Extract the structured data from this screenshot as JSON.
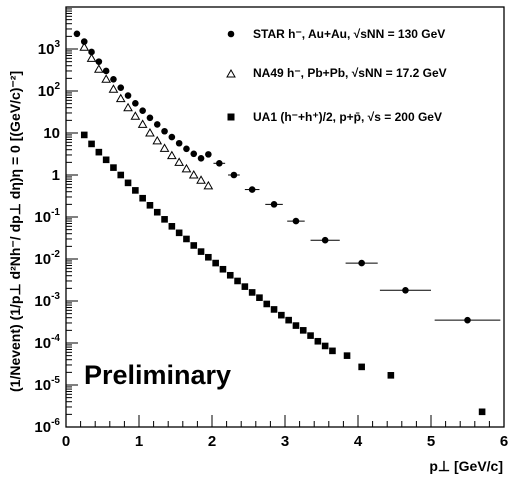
{
  "chart_data": {
    "type": "scatter",
    "x_scale": "linear",
    "y_scale": "log",
    "xlim": [
      0,
      6
    ],
    "ylim": [
      1e-06,
      10000
    ],
    "x_ticks": [
      "0",
      "1",
      "2",
      "3",
      "4",
      "5",
      "6"
    ],
    "y_ticks": [
      {
        "base": "10",
        "exp": "-6",
        "value": 1e-06
      },
      {
        "base": "10",
        "exp": "-5",
        "value": 1e-05
      },
      {
        "base": "10",
        "exp": "-4",
        "value": 0.0001
      },
      {
        "base": "10",
        "exp": "-3",
        "value": 0.001
      },
      {
        "base": "10",
        "exp": "-2",
        "value": 0.01
      },
      {
        "base": "10",
        "exp": "-1",
        "value": 0.1
      },
      {
        "base": "1",
        "exp": "",
        "value": 1
      },
      {
        "base": "10",
        "exp": "",
        "value": 10
      },
      {
        "base": "10",
        "exp": "2",
        "value": 100
      },
      {
        "base": "10",
        "exp": "3",
        "value": 1000
      }
    ],
    "xlabel": "p⊥ [GeV/c]",
    "ylabel": "(1/Nevent) (1/p⊥ d²Nh⁻/ dp⊥ dη)η = 0  [(GeV/c)⁻²]",
    "annotation": "Preliminary",
    "legend_placement": "top-right",
    "series": [
      {
        "name": "STAR h⁻, Au+Au, √sNN = 130 GeV",
        "marker": "circle-filled",
        "points": [
          {
            "x": 0.15,
            "y": 2300
          },
          {
            "x": 0.25,
            "y": 1500
          },
          {
            "x": 0.35,
            "y": 850
          },
          {
            "x": 0.45,
            "y": 500
          },
          {
            "x": 0.55,
            "y": 300
          },
          {
            "x": 0.65,
            "y": 190
          },
          {
            "x": 0.75,
            "y": 120
          },
          {
            "x": 0.85,
            "y": 78
          },
          {
            "x": 0.95,
            "y": 51
          },
          {
            "x": 1.05,
            "y": 34
          },
          {
            "x": 1.15,
            "y": 23
          },
          {
            "x": 1.25,
            "y": 16
          },
          {
            "x": 1.35,
            "y": 11
          },
          {
            "x": 1.45,
            "y": 8
          },
          {
            "x": 1.55,
            "y": 5.7
          },
          {
            "x": 1.65,
            "y": 4.2
          },
          {
            "x": 1.75,
            "y": 3.2
          },
          {
            "x": 1.85,
            "y": 2.5
          },
          {
            "x": 1.95,
            "y": 3.1
          },
          {
            "x": 2.1,
            "y": 1.9,
            "xerr": 0.08
          },
          {
            "x": 2.3,
            "y": 1.0,
            "xerr": 0.08
          },
          {
            "x": 2.55,
            "y": 0.45,
            "xerr": 0.1
          },
          {
            "x": 2.85,
            "y": 0.2,
            "xerr": 0.12
          },
          {
            "x": 3.15,
            "y": 0.08,
            "xerr": 0.12
          },
          {
            "x": 3.55,
            "y": 0.028,
            "xerr": 0.2
          },
          {
            "x": 4.05,
            "y": 0.008,
            "xerr": 0.22
          },
          {
            "x": 4.65,
            "y": 0.0018,
            "xerr": 0.35
          },
          {
            "x": 5.5,
            "y": 0.00035,
            "xerr": 0.45
          }
        ]
      },
      {
        "name": "NA49 h⁻, Pb+Pb, √sNN = 17.2 GeV",
        "marker": "triangle-open",
        "points": [
          {
            "x": 0.25,
            "y": 1100
          },
          {
            "x": 0.35,
            "y": 600
          },
          {
            "x": 0.45,
            "y": 330
          },
          {
            "x": 0.55,
            "y": 190
          },
          {
            "x": 0.65,
            "y": 110
          },
          {
            "x": 0.75,
            "y": 66
          },
          {
            "x": 0.85,
            "y": 40
          },
          {
            "x": 0.95,
            "y": 25
          },
          {
            "x": 1.05,
            "y": 16
          },
          {
            "x": 1.15,
            "y": 10
          },
          {
            "x": 1.25,
            "y": 6.5
          },
          {
            "x": 1.35,
            "y": 4.3
          },
          {
            "x": 1.45,
            "y": 2.9
          },
          {
            "x": 1.55,
            "y": 2.0
          },
          {
            "x": 1.65,
            "y": 1.4
          },
          {
            "x": 1.75,
            "y": 1.0
          },
          {
            "x": 1.85,
            "y": 0.75
          },
          {
            "x": 1.95,
            "y": 0.55
          }
        ]
      },
      {
        "name": "UA1 (h⁻+h⁺)/2, p+p̄, √s = 200 GeV",
        "marker": "square-filled",
        "points": [
          {
            "x": 0.25,
            "y": 9
          },
          {
            "x": 0.35,
            "y": 5.5
          },
          {
            "x": 0.45,
            "y": 3.5
          },
          {
            "x": 0.55,
            "y": 2.3
          },
          {
            "x": 0.65,
            "y": 1.5
          },
          {
            "x": 0.75,
            "y": 1.0
          },
          {
            "x": 0.85,
            "y": 0.65
          },
          {
            "x": 0.95,
            "y": 0.43
          },
          {
            "x": 1.05,
            "y": 0.28
          },
          {
            "x": 1.15,
            "y": 0.19
          },
          {
            "x": 1.25,
            "y": 0.13
          },
          {
            "x": 1.35,
            "y": 0.088
          },
          {
            "x": 1.45,
            "y": 0.06
          },
          {
            "x": 1.55,
            "y": 0.042
          },
          {
            "x": 1.65,
            "y": 0.03
          },
          {
            "x": 1.75,
            "y": 0.021
          },
          {
            "x": 1.85,
            "y": 0.015
          },
          {
            "x": 1.95,
            "y": 0.011
          },
          {
            "x": 2.05,
            "y": 0.008
          },
          {
            "x": 2.15,
            "y": 0.0057
          },
          {
            "x": 2.25,
            "y": 0.0041
          },
          {
            "x": 2.35,
            "y": 0.003
          },
          {
            "x": 2.45,
            "y": 0.0022
          },
          {
            "x": 2.55,
            "y": 0.0016
          },
          {
            "x": 2.65,
            "y": 0.0012
          },
          {
            "x": 2.75,
            "y": 0.00085
          },
          {
            "x": 2.85,
            "y": 0.00063
          },
          {
            "x": 2.95,
            "y": 0.00046
          },
          {
            "x": 3.05,
            "y": 0.00035
          },
          {
            "x": 3.15,
            "y": 0.00026
          },
          {
            "x": 3.25,
            "y": 0.0002
          },
          {
            "x": 3.35,
            "y": 0.00015
          },
          {
            "x": 3.45,
            "y": 0.00011
          },
          {
            "x": 3.55,
            "y": 8.5e-05
          },
          {
            "x": 3.65,
            "y": 6.5e-05
          },
          {
            "x": 3.85,
            "y": 5e-05
          },
          {
            "x": 4.05,
            "y": 2.7e-05
          },
          {
            "x": 4.45,
            "y": 1.7e-05
          },
          {
            "x": 5.7,
            "y": 2.3e-06
          }
        ]
      }
    ]
  }
}
